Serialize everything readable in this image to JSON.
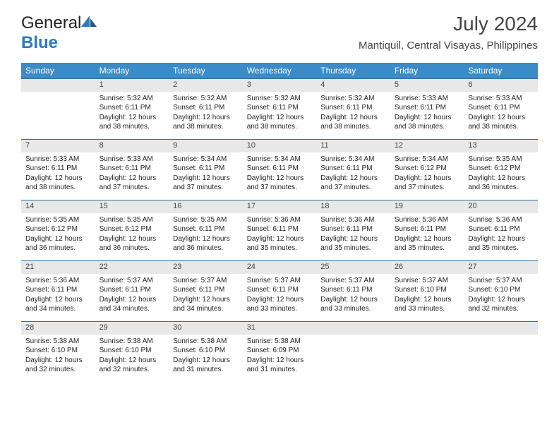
{
  "brand": {
    "part1": "General",
    "part2": "Blue"
  },
  "title": "July 2024",
  "location": "Mantiquil, Central Visayas, Philippines",
  "colors": {
    "header_bg": "#3b8bc8",
    "row_border": "#2b6fa8",
    "daynum_bg": "#e8e8e8",
    "logo_blue": "#2b7bbd"
  },
  "weekdays": [
    "Sunday",
    "Monday",
    "Tuesday",
    "Wednesday",
    "Thursday",
    "Friday",
    "Saturday"
  ],
  "weeks": [
    [
      {
        "n": "",
        "sr": "",
        "ss": "",
        "dl": ""
      },
      {
        "n": "1",
        "sr": "Sunrise: 5:32 AM",
        "ss": "Sunset: 6:11 PM",
        "dl": "Daylight: 12 hours and 38 minutes."
      },
      {
        "n": "2",
        "sr": "Sunrise: 5:32 AM",
        "ss": "Sunset: 6:11 PM",
        "dl": "Daylight: 12 hours and 38 minutes."
      },
      {
        "n": "3",
        "sr": "Sunrise: 5:32 AM",
        "ss": "Sunset: 6:11 PM",
        "dl": "Daylight: 12 hours and 38 minutes."
      },
      {
        "n": "4",
        "sr": "Sunrise: 5:32 AM",
        "ss": "Sunset: 6:11 PM",
        "dl": "Daylight: 12 hours and 38 minutes."
      },
      {
        "n": "5",
        "sr": "Sunrise: 5:33 AM",
        "ss": "Sunset: 6:11 PM",
        "dl": "Daylight: 12 hours and 38 minutes."
      },
      {
        "n": "6",
        "sr": "Sunrise: 5:33 AM",
        "ss": "Sunset: 6:11 PM",
        "dl": "Daylight: 12 hours and 38 minutes."
      }
    ],
    [
      {
        "n": "7",
        "sr": "Sunrise: 5:33 AM",
        "ss": "Sunset: 6:11 PM",
        "dl": "Daylight: 12 hours and 38 minutes."
      },
      {
        "n": "8",
        "sr": "Sunrise: 5:33 AM",
        "ss": "Sunset: 6:11 PM",
        "dl": "Daylight: 12 hours and 37 minutes."
      },
      {
        "n": "9",
        "sr": "Sunrise: 5:34 AM",
        "ss": "Sunset: 6:11 PM",
        "dl": "Daylight: 12 hours and 37 minutes."
      },
      {
        "n": "10",
        "sr": "Sunrise: 5:34 AM",
        "ss": "Sunset: 6:11 PM",
        "dl": "Daylight: 12 hours and 37 minutes."
      },
      {
        "n": "11",
        "sr": "Sunrise: 5:34 AM",
        "ss": "Sunset: 6:11 PM",
        "dl": "Daylight: 12 hours and 37 minutes."
      },
      {
        "n": "12",
        "sr": "Sunrise: 5:34 AM",
        "ss": "Sunset: 6:12 PM",
        "dl": "Daylight: 12 hours and 37 minutes."
      },
      {
        "n": "13",
        "sr": "Sunrise: 5:35 AM",
        "ss": "Sunset: 6:12 PM",
        "dl": "Daylight: 12 hours and 36 minutes."
      }
    ],
    [
      {
        "n": "14",
        "sr": "Sunrise: 5:35 AM",
        "ss": "Sunset: 6:12 PM",
        "dl": "Daylight: 12 hours and 36 minutes."
      },
      {
        "n": "15",
        "sr": "Sunrise: 5:35 AM",
        "ss": "Sunset: 6:12 PM",
        "dl": "Daylight: 12 hours and 36 minutes."
      },
      {
        "n": "16",
        "sr": "Sunrise: 5:35 AM",
        "ss": "Sunset: 6:11 PM",
        "dl": "Daylight: 12 hours and 36 minutes."
      },
      {
        "n": "17",
        "sr": "Sunrise: 5:36 AM",
        "ss": "Sunset: 6:11 PM",
        "dl": "Daylight: 12 hours and 35 minutes."
      },
      {
        "n": "18",
        "sr": "Sunrise: 5:36 AM",
        "ss": "Sunset: 6:11 PM",
        "dl": "Daylight: 12 hours and 35 minutes."
      },
      {
        "n": "19",
        "sr": "Sunrise: 5:36 AM",
        "ss": "Sunset: 6:11 PM",
        "dl": "Daylight: 12 hours and 35 minutes."
      },
      {
        "n": "20",
        "sr": "Sunrise: 5:36 AM",
        "ss": "Sunset: 6:11 PM",
        "dl": "Daylight: 12 hours and 35 minutes."
      }
    ],
    [
      {
        "n": "21",
        "sr": "Sunrise: 5:36 AM",
        "ss": "Sunset: 6:11 PM",
        "dl": "Daylight: 12 hours and 34 minutes."
      },
      {
        "n": "22",
        "sr": "Sunrise: 5:37 AM",
        "ss": "Sunset: 6:11 PM",
        "dl": "Daylight: 12 hours and 34 minutes."
      },
      {
        "n": "23",
        "sr": "Sunrise: 5:37 AM",
        "ss": "Sunset: 6:11 PM",
        "dl": "Daylight: 12 hours and 34 minutes."
      },
      {
        "n": "24",
        "sr": "Sunrise: 5:37 AM",
        "ss": "Sunset: 6:11 PM",
        "dl": "Daylight: 12 hours and 33 minutes."
      },
      {
        "n": "25",
        "sr": "Sunrise: 5:37 AM",
        "ss": "Sunset: 6:11 PM",
        "dl": "Daylight: 12 hours and 33 minutes."
      },
      {
        "n": "26",
        "sr": "Sunrise: 5:37 AM",
        "ss": "Sunset: 6:10 PM",
        "dl": "Daylight: 12 hours and 33 minutes."
      },
      {
        "n": "27",
        "sr": "Sunrise: 5:37 AM",
        "ss": "Sunset: 6:10 PM",
        "dl": "Daylight: 12 hours and 32 minutes."
      }
    ],
    [
      {
        "n": "28",
        "sr": "Sunrise: 5:38 AM",
        "ss": "Sunset: 6:10 PM",
        "dl": "Daylight: 12 hours and 32 minutes."
      },
      {
        "n": "29",
        "sr": "Sunrise: 5:38 AM",
        "ss": "Sunset: 6:10 PM",
        "dl": "Daylight: 12 hours and 32 minutes."
      },
      {
        "n": "30",
        "sr": "Sunrise: 5:38 AM",
        "ss": "Sunset: 6:10 PM",
        "dl": "Daylight: 12 hours and 31 minutes."
      },
      {
        "n": "31",
        "sr": "Sunrise: 5:38 AM",
        "ss": "Sunset: 6:09 PM",
        "dl": "Daylight: 12 hours and 31 minutes."
      },
      {
        "n": "",
        "sr": "",
        "ss": "",
        "dl": ""
      },
      {
        "n": "",
        "sr": "",
        "ss": "",
        "dl": ""
      },
      {
        "n": "",
        "sr": "",
        "ss": "",
        "dl": ""
      }
    ]
  ]
}
